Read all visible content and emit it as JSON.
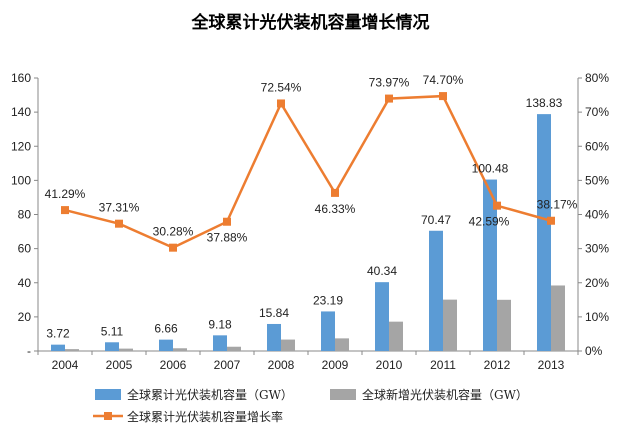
{
  "chart_data": {
    "type": "bar",
    "title": "全球累计光伏装机容量增长情况",
    "categories": [
      "2004",
      "2005",
      "2006",
      "2007",
      "2008",
      "2009",
      "2010",
      "2011",
      "2012",
      "2013"
    ],
    "series": [
      {
        "name": "全球累计光伏装机容量（GW）",
        "type": "bar",
        "axis": "left",
        "color": "#5B9BD5",
        "values": [
          3.72,
          5.11,
          6.66,
          9.18,
          15.84,
          23.19,
          40.34,
          70.47,
          100.48,
          138.83
        ],
        "labels": [
          "3.72",
          "5.11",
          "6.66",
          "9.18",
          "15.84",
          "23.19",
          "40.34",
          "70.47",
          "100.48",
          "138.83"
        ]
      },
      {
        "name": "全球新增光伏装机容量（GW）",
        "type": "bar",
        "axis": "left",
        "color": "#A5A5A5",
        "values": [
          1.1,
          1.4,
          1.6,
          2.5,
          6.7,
          7.4,
          17.2,
          30.1,
          30.0,
          38.4
        ]
      },
      {
        "name": "全球累计光伏装机容量增长率",
        "type": "line",
        "axis": "right",
        "color": "#ED7D31",
        "values": [
          41.29,
          37.31,
          30.28,
          37.88,
          72.54,
          46.33,
          73.97,
          74.7,
          42.59,
          38.17
        ],
        "labels": [
          "41.29%",
          "37.31%",
          "30.28%",
          "37.88%",
          "72.54%",
          "46.33%",
          "73.97%",
          "74.70%",
          "42.59%",
          "38.17%"
        ]
      }
    ],
    "yaxis_left": {
      "ylim": [
        0,
        160
      ],
      "ticks": [
        0,
        20,
        40,
        60,
        80,
        100,
        120,
        140,
        160
      ],
      "tick_labels": [
        "-",
        "20",
        "40",
        "60",
        "80",
        "100",
        "120",
        "140",
        "160"
      ]
    },
    "yaxis_right": {
      "ylim": [
        0,
        80
      ],
      "ticks": [
        0,
        10,
        20,
        30,
        40,
        50,
        60,
        70,
        80
      ],
      "tick_labels": [
        "0%",
        "10%",
        "20%",
        "30%",
        "40%",
        "50%",
        "60%",
        "70%",
        "80%"
      ]
    },
    "grid": false,
    "legend_position": "bottom"
  }
}
